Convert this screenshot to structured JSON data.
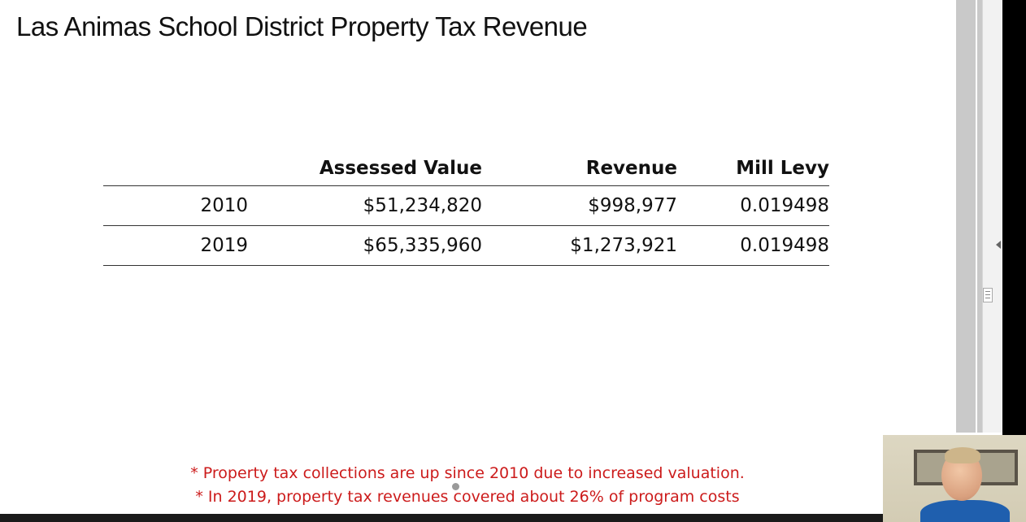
{
  "slide": {
    "title": "Las Animas School District Property Tax Revenue",
    "table": {
      "columns": [
        "",
        "Assessed Value",
        "Revenue",
        "Mill Levy"
      ],
      "rows": [
        {
          "year": "2010",
          "assessed_value": "$51,234,820",
          "revenue": "$998,977",
          "mill_levy": "0.019498"
        },
        {
          "year": "2019",
          "assessed_value": "$65,335,960",
          "revenue": "$1,273,921",
          "mill_levy": "0.019498"
        }
      ]
    },
    "notes": [
      "* Property tax collections are up since 2010 due to increased valuation.",
      "* In 2019, property tax revenues covered about 26% of program costs"
    ]
  },
  "colors": {
    "note_text": "#cc1b1b",
    "gutter": "#c9c9c9",
    "edge": "#000000"
  },
  "icons": {
    "collapse": "chevron-left-icon",
    "scroll_grip": "grip-icon",
    "pointer": "cursor-dot-icon"
  }
}
